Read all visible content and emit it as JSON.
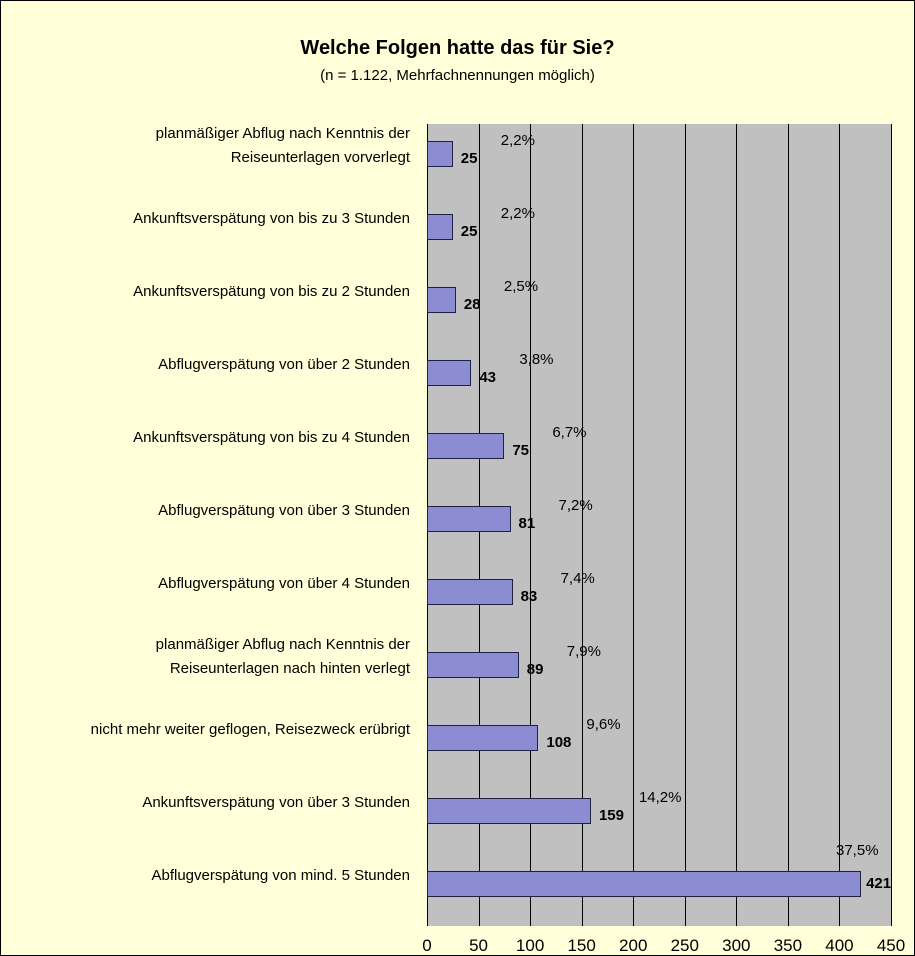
{
  "chart_data": {
    "type": "bar",
    "orientation": "horizontal",
    "title": "Welche Folgen hatte das für Sie?",
    "subtitle": "(n = 1.122, Mehrfachnennungen möglich)",
    "categories": [
      "planmäßiger Abflug nach Kenntnis der\nReiseunterlagen vorverlegt",
      "Ankunftsverspätung von bis zu 3 Stunden",
      "Ankunftsverspätung von bis zu 2 Stunden",
      "Abflugverspätung von über 2 Stunden",
      "Ankunftsverspätung von bis zu 4 Stunden",
      "Abflugverspätung von über 3 Stunden",
      "Abflugverspätung von über 4 Stunden",
      "planmäßiger Abflug nach Kenntnis der\nReiseunterlagen nach hinten verlegt",
      "nicht mehr weiter geflogen, Reisezweck erübrigt",
      "Ankunftsverspätung von über 3 Stunden",
      "Abflugverspätung von mind. 5 Stunden"
    ],
    "values": [
      25,
      25,
      28,
      43,
      75,
      81,
      83,
      89,
      108,
      159,
      421
    ],
    "percentages": [
      2.2,
      2.2,
      2.5,
      3.8,
      6.7,
      7.2,
      7.4,
      7.9,
      9.6,
      14.2,
      37.5
    ],
    "percentage_labels": [
      "2,2%",
      "2,2%",
      "2,5%",
      "3,8%",
      "6,7%",
      "7,2%",
      "7,4%",
      "7,9%",
      "9,6%",
      "14,2%",
      "37,5%"
    ],
    "color": "#8c8cd2",
    "xlim": [
      0,
      450
    ],
    "xticks": [
      0,
      50,
      100,
      150,
      200,
      250,
      300,
      350,
      400,
      450
    ],
    "grid": true
  }
}
